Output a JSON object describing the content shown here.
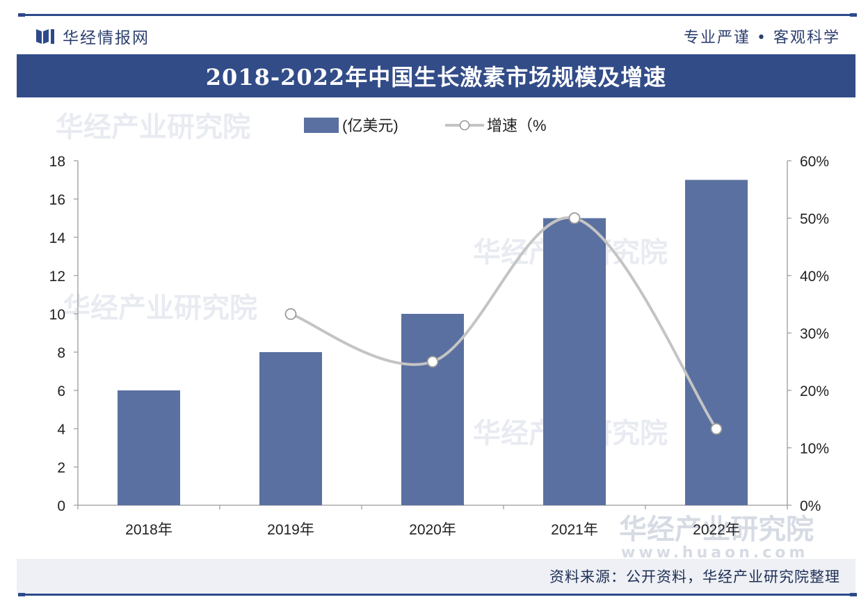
{
  "header": {
    "brand_name": "华经情报网",
    "slogan": "专业严谨 • 客观科学",
    "brand_color": "#2c4a8a"
  },
  "banner": {
    "title": "2018-2022年中国生长激素市场规模及增速"
  },
  "watermark": {
    "text": "华经产业研究院",
    "url_text": "www.huaon.com"
  },
  "footer": {
    "source": "资料来源：公开资料，华经产业研究院整理"
  },
  "chart_data": {
    "type": "bar",
    "title": "2018-2022年中国生长激素市场规模及增速",
    "categories": [
      "2018年",
      "2019年",
      "2020年",
      "2021年",
      "2022年"
    ],
    "series": [
      {
        "name": "(亿美元)",
        "type": "bar",
        "axis": "left",
        "color": "#5a70a0",
        "values": [
          6,
          8,
          10,
          15,
          17
        ]
      },
      {
        "name": "增速（%",
        "type": "line",
        "axis": "right",
        "color": "#c4c4c4",
        "values": [
          null,
          33.3,
          25.0,
          50.0,
          13.3
        ]
      }
    ],
    "y_left": {
      "min": 0,
      "max": 18,
      "ticks": [
        "0",
        "2",
        "4",
        "6",
        "8",
        "10",
        "12",
        "14",
        "16",
        "18"
      ]
    },
    "y_right": {
      "min": 0,
      "max": 60,
      "ticks": [
        "0%",
        "10%",
        "20%",
        "30%",
        "40%",
        "50%",
        "60%"
      ]
    },
    "legend": "top-center",
    "grid": false
  }
}
